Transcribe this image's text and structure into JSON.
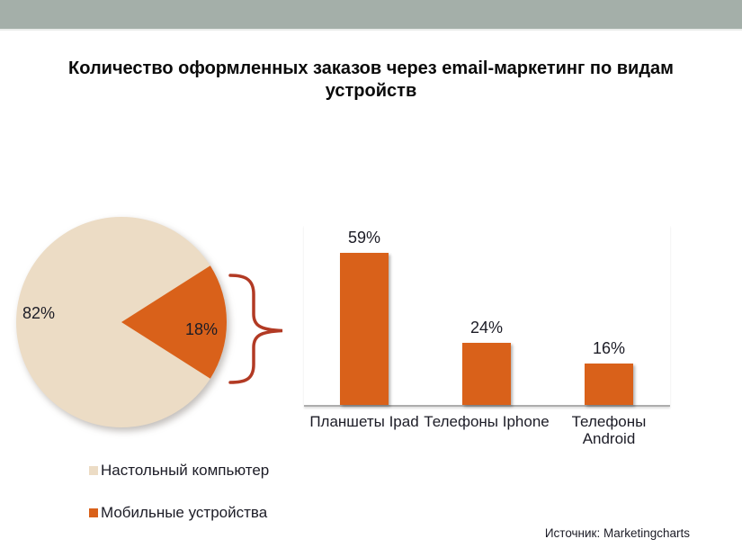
{
  "page": {
    "title": "Количество оформленных заказов через email-маркетинг по видам устройств",
    "source": "Источник: Marketingcharts"
  },
  "colors": {
    "top_bar": "#a4afa9",
    "desktop_beige": "#ecdcc5",
    "mobile_orange": "#d9611a",
    "brace": "#b23a24",
    "axis": "#adadad",
    "text": "#1c1c26"
  },
  "chart_data": [
    {
      "type": "pie",
      "labels": [
        "Настольный компьютер",
        "Мобильные устройства"
      ],
      "values": [
        82,
        18
      ],
      "value_labels": [
        "82%",
        "18%"
      ],
      "colors": [
        "#ecdcc5",
        "#d9611a"
      ],
      "legend_position": "bottom-left",
      "orientation": "mobile slice centered on right, pointing toward bar chart"
    },
    {
      "type": "bar",
      "categories": [
        "Планшеты Ipad",
        "Телефоны Iphone",
        "Телефоны Android"
      ],
      "values": [
        59,
        24,
        16
      ],
      "value_labels": [
        "59%",
        "24%",
        "16%"
      ],
      "bar_color": "#d9611a",
      "ylim": [
        0,
        70
      ],
      "grid": false,
      "legend_position": "none"
    }
  ]
}
